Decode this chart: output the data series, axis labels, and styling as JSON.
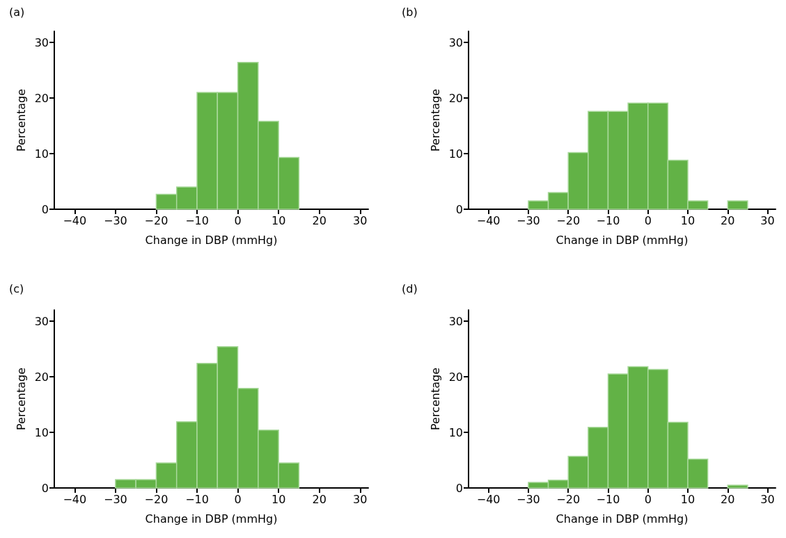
{
  "chart_data": [
    {
      "type": "histogram",
      "title": "(a)",
      "xlabel": "Change in DBP (mmHg)",
      "ylabel": "Percentage",
      "color": "#62b246",
      "bins": [
        -20,
        -15,
        -10,
        -5,
        0,
        5,
        10,
        15
      ],
      "values": [
        2.7,
        4,
        21,
        21,
        26.4,
        15.8,
        9.3
      ],
      "xlim": [
        -45,
        32
      ],
      "ylim": [
        0,
        32
      ],
      "xticks": [
        {
          "value": -40,
          "label": "−40"
        },
        {
          "value": -30,
          "label": "−30"
        },
        {
          "value": -20,
          "label": "−20"
        },
        {
          "value": -10,
          "label": "−10"
        },
        0,
        10,
        20,
        30
      ],
      "yticks": [
        0,
        10,
        20,
        30
      ]
    },
    {
      "type": "histogram",
      "title": "(b)",
      "xlabel": "Change in DBP (mmHg)",
      "ylabel": "Percentage",
      "color": "#62b246",
      "bins": [
        -30,
        -25,
        -20,
        -15,
        -10,
        -5,
        0,
        5,
        10,
        15,
        20,
        25
      ],
      "values": [
        1.5,
        3,
        10.2,
        17.6,
        17.6,
        19.1,
        19.1,
        8.8,
        1.5,
        0,
        1.5
      ],
      "xlim": [
        -45,
        32
      ],
      "ylim": [
        0,
        32
      ],
      "xticks": [
        {
          "value": -40,
          "label": "−40"
        },
        {
          "value": -30,
          "label": "−30"
        },
        {
          "value": -20,
          "label": "−20"
        },
        {
          "value": -10,
          "label": "−10"
        },
        0,
        10,
        20,
        30
      ],
      "yticks": [
        0,
        10,
        20,
        30
      ]
    },
    {
      "type": "histogram",
      "title": "(c)",
      "xlabel": "Change in DBP (mmHg)",
      "ylabel": "Percentage",
      "color": "#62b246",
      "bins": [
        -30,
        -25,
        -20,
        -15,
        -10,
        -5,
        0,
        5,
        10,
        15
      ],
      "values": [
        1.5,
        1.5,
        4.5,
        11.9,
        22.4,
        25.4,
        17.9,
        10.4,
        4.5
      ],
      "xlim": [
        -45,
        32
      ],
      "ylim": [
        0,
        32
      ],
      "xticks": [
        {
          "value": -40,
          "label": "−40"
        },
        {
          "value": -30,
          "label": "−30"
        },
        {
          "value": -20,
          "label": "−20"
        },
        {
          "value": -10,
          "label": "−10"
        },
        0,
        10,
        20,
        30
      ],
      "yticks": [
        0,
        10,
        20,
        30
      ]
    },
    {
      "type": "histogram",
      "title": "(d)",
      "xlabel": "Change in DBP (mmHg)",
      "ylabel": "Percentage",
      "color": "#62b246",
      "bins": [
        -30,
        -25,
        -20,
        -15,
        -10,
        -5,
        0,
        5,
        10,
        15,
        20,
        25
      ],
      "values": [
        1,
        1.4,
        5.7,
        10.9,
        20.5,
        21.8,
        21.3,
        11.8,
        5.2,
        0,
        0.5
      ],
      "xlim": [
        -45,
        32
      ],
      "ylim": [
        0,
        32
      ],
      "xticks": [
        {
          "value": -40,
          "label": "−40"
        },
        {
          "value": -30,
          "label": "−30"
        },
        {
          "value": -20,
          "label": "−20"
        },
        {
          "value": -10,
          "label": "−10"
        },
        0,
        10,
        20,
        30
      ],
      "yticks": [
        0,
        10,
        20,
        30
      ]
    }
  ]
}
